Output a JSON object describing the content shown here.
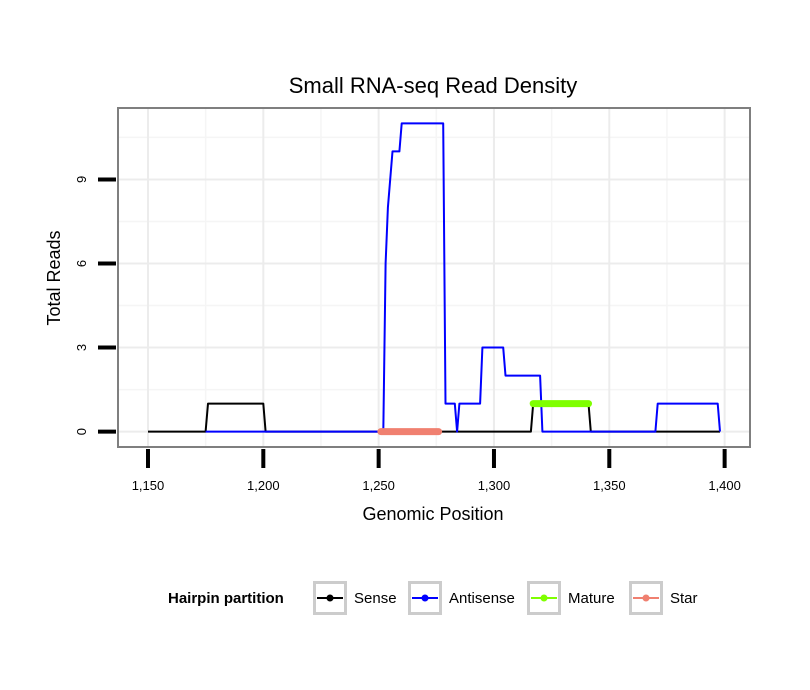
{
  "chart_data": {
    "type": "line",
    "title": "Small RNA-seq Read Density",
    "xlabel": "Genomic Position",
    "ylabel": "Total Reads",
    "xlim": [
      1137,
      1411
    ],
    "ylim": [
      -0.55,
      11.55
    ],
    "x_ticks": [
      1150,
      1200,
      1250,
      1300,
      1350,
      1400
    ],
    "x_tick_labels": [
      "1,150",
      "1,200",
      "1,250",
      "1,300",
      "1,350",
      "1,400"
    ],
    "y_ticks": [
      0,
      3,
      6,
      9
    ],
    "y_tick_labels": [
      "0",
      "3",
      "6",
      "9"
    ],
    "grid": true,
    "legend": {
      "title": "Hairpin partition",
      "position": "bottom",
      "entries": [
        "Sense",
        "Antisense",
        "Mature",
        "Star"
      ]
    },
    "series": [
      {
        "name": "Sense",
        "color": "#000000",
        "x": [
          1150,
          1175,
          1176,
          1200,
          1201,
          1316,
          1317,
          1341,
          1342,
          1398
        ],
        "values": [
          0,
          0,
          1,
          1,
          0,
          0,
          1,
          1,
          0,
          0
        ]
      },
      {
        "name": "Antisense",
        "color": "#0000ff",
        "x": [
          1175,
          1200,
          1201,
          1252,
          1253,
          1254,
          1255,
          1256,
          1257,
          1258,
          1259,
          1260,
          1261,
          1262,
          1263,
          1264,
          1265,
          1266,
          1267,
          1268,
          1269,
          1270,
          1271,
          1272,
          1273,
          1274,
          1275,
          1276,
          1277,
          1278,
          1279,
          1280,
          1281,
          1282,
          1283,
          1284,
          1285,
          1286,
          1287,
          1288,
          1289,
          1290,
          1291,
          1292,
          1293,
          1294,
          1295,
          1296,
          1297,
          1298,
          1299,
          1300,
          1301,
          1302,
          1303,
          1304,
          1305,
          1306,
          1307,
          1308,
          1309,
          1310,
          1311,
          1312,
          1313,
          1314,
          1315,
          1316,
          1317,
          1318,
          1319,
          1320,
          1321,
          1322,
          1341,
          1370,
          1371,
          1397,
          1398
        ],
        "values": [
          0,
          0,
          0,
          0,
          6,
          8,
          9,
          10,
          10,
          10,
          10,
          11,
          11,
          11,
          11,
          11,
          11,
          11,
          11,
          11,
          11,
          11,
          11,
          11,
          11,
          11,
          11,
          11,
          11,
          11,
          1,
          1,
          1,
          1,
          1,
          0,
          1,
          1,
          1,
          1,
          1,
          1,
          1,
          1,
          1,
          1,
          3,
          3,
          3,
          3,
          3,
          3,
          3,
          3,
          3,
          3,
          2,
          2,
          2,
          2,
          2,
          2,
          2,
          2,
          2,
          2,
          2,
          2,
          2,
          2,
          2,
          2,
          0,
          0,
          0,
          0,
          1,
          1,
          0
        ]
      },
      {
        "name": "Mature",
        "color": "#7fff00",
        "x": [
          1317,
          1341
        ],
        "values": [
          1,
          1
        ]
      },
      {
        "name": "Star",
        "color": "#f08070",
        "x": [
          1251,
          1276
        ],
        "values": [
          0,
          0
        ]
      }
    ]
  }
}
